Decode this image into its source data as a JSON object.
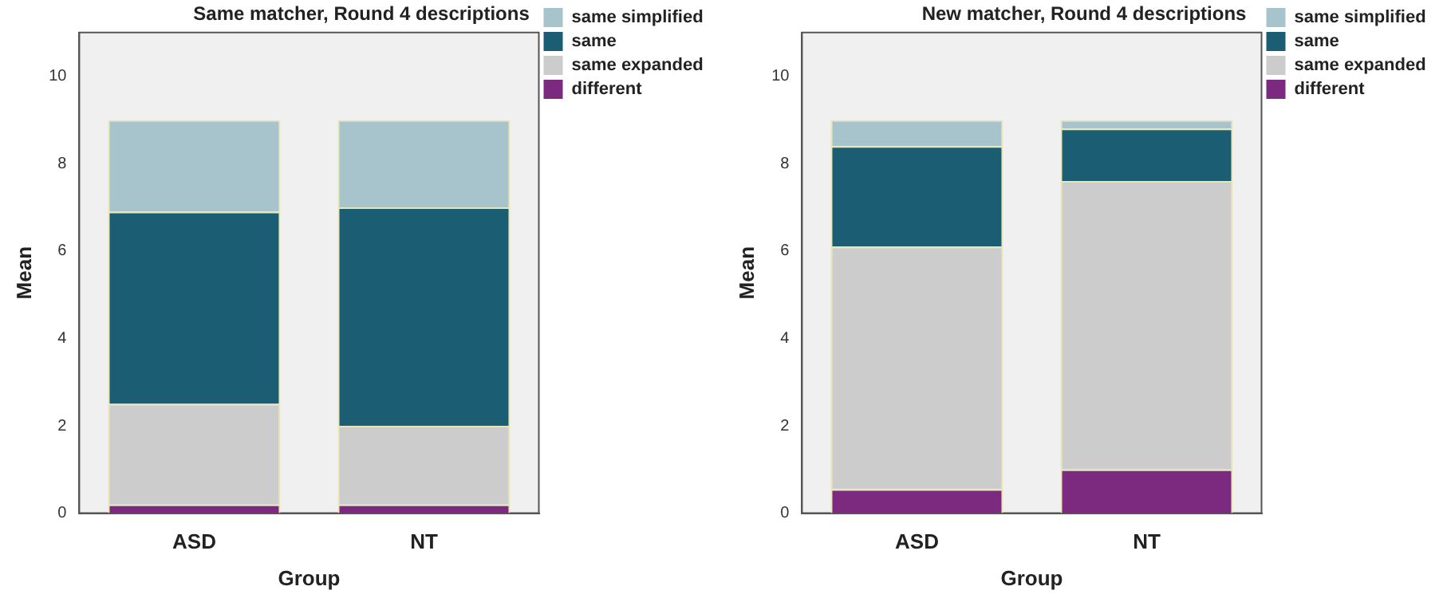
{
  "chart_data": [
    {
      "type": "bar",
      "title": "Same matcher, Round 4 descriptions",
      "xlabel": "Group",
      "ylabel": "Mean",
      "categories": [
        "ASD",
        "NT"
      ],
      "stacked": true,
      "ylim": [
        0,
        11
      ],
      "yticks": [
        0,
        2,
        4,
        6,
        8,
        10
      ],
      "grid": false,
      "legend": "top right",
      "series": [
        {
          "name": "different",
          "color": "#7b2a7f",
          "values": [
            0.2,
            0.2
          ]
        },
        {
          "name": "same expanded",
          "color": "#cccccc",
          "values": [
            2.3,
            1.8
          ]
        },
        {
          "name": "same",
          "color": "#1b5e74",
          "values": [
            4.4,
            5.0
          ]
        },
        {
          "name": "same simplified",
          "color": "#a7c3cc",
          "values": [
            2.1,
            2.0
          ]
        }
      ]
    },
    {
      "type": "bar",
      "title": "New matcher, Round 4 descriptions",
      "xlabel": "Group",
      "ylabel": "Mean",
      "categories": [
        "ASD",
        "NT"
      ],
      "stacked": true,
      "ylim": [
        0,
        11
      ],
      "yticks": [
        0,
        2,
        4,
        6,
        8,
        10
      ],
      "grid": false,
      "legend": "top right",
      "series": [
        {
          "name": "different",
          "color": "#7b2a7f",
          "values": [
            0.55,
            1.0
          ]
        },
        {
          "name": "same expanded",
          "color": "#cccccc",
          "values": [
            5.55,
            6.6
          ]
        },
        {
          "name": "same",
          "color": "#1b5e74",
          "values": [
            2.3,
            1.2
          ]
        },
        {
          "name": "same simplified",
          "color": "#a7c3cc",
          "values": [
            0.6,
            0.2
          ]
        }
      ]
    }
  ]
}
